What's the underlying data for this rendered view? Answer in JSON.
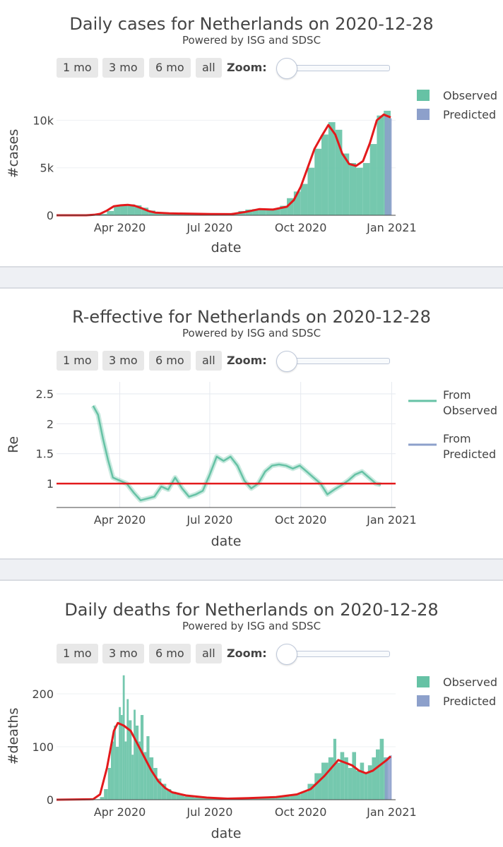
{
  "range_buttons": [
    "1 mo",
    "3 mo",
    "6 mo",
    "all"
  ],
  "zoom_label": "Zoom:",
  "subtitle": "Powered by ISG and SDSC",
  "colors": {
    "observed": "#66c2a5",
    "predicted": "#8da0cb",
    "trend": "#e31a1c"
  },
  "chart_data": [
    {
      "type": "bar",
      "title": "Daily cases for Netherlands on 2020-12-28",
      "xlabel": "date",
      "ylabel": "#cases",
      "x_ticks": [
        "Apr 2020",
        "Jul 2020",
        "Oct 2020",
        "Jan 2021"
      ],
      "y_ticks": [
        "0",
        "5k",
        "10k"
      ],
      "ylim": [
        0,
        13000
      ],
      "x_range": [
        "2020-01-28",
        "2021-01-05"
      ],
      "legend": [
        "Observed",
        "Predicted"
      ],
      "legend_position": "top-right",
      "series": [
        {
          "name": "Observed",
          "type": "bar",
          "points": [
            [
              "2020-02-27",
              0
            ],
            [
              "2020-03-05",
              40
            ],
            [
              "2020-03-12",
              140
            ],
            [
              "2020-03-19",
              450
            ],
            [
              "2020-03-26",
              950
            ],
            [
              "2020-04-02",
              1100
            ],
            [
              "2020-04-09",
              1150
            ],
            [
              "2020-04-16",
              1050
            ],
            [
              "2020-04-23",
              800
            ],
            [
              "2020-04-30",
              500
            ],
            [
              "2020-05-07",
              300
            ],
            [
              "2020-05-14",
              220
            ],
            [
              "2020-05-21",
              180
            ],
            [
              "2020-05-28",
              160
            ],
            [
              "2020-06-04",
              140
            ],
            [
              "2020-06-11",
              130
            ],
            [
              "2020-06-18",
              120
            ],
            [
              "2020-06-25",
              110
            ],
            [
              "2020-07-02",
              90
            ],
            [
              "2020-07-09",
              100
            ],
            [
              "2020-07-16",
              150
            ],
            [
              "2020-07-23",
              250
            ],
            [
              "2020-07-30",
              450
            ],
            [
              "2020-08-06",
              600
            ],
            [
              "2020-08-13",
              650
            ],
            [
              "2020-08-20",
              580
            ],
            [
              "2020-08-27",
              550
            ],
            [
              "2020-09-03",
              650
            ],
            [
              "2020-09-10",
              1000
            ],
            [
              "2020-09-17",
              1800
            ],
            [
              "2020-09-24",
              2500
            ],
            [
              "2020-10-01",
              3300
            ],
            [
              "2020-10-08",
              5000
            ],
            [
              "2020-10-15",
              7000
            ],
            [
              "2020-10-22",
              8500
            ],
            [
              "2020-10-29",
              9800
            ],
            [
              "2020-11-05",
              9000
            ],
            [
              "2020-11-12",
              6500
            ],
            [
              "2020-11-19",
              5500
            ],
            [
              "2020-11-26",
              5000
            ],
            [
              "2020-12-03",
              5500
            ],
            [
              "2020-12-10",
              7500
            ],
            [
              "2020-12-17",
              10500
            ],
            [
              "2020-12-24",
              11000
            ]
          ]
        },
        {
          "name": "Predicted",
          "type": "bar",
          "points": [
            [
              "2020-12-25",
              10600
            ],
            [
              "2020-12-26",
              10500
            ],
            [
              "2020-12-27",
              10400
            ],
            [
              "2020-12-28",
              10300
            ],
            [
              "2020-12-29",
              10200
            ],
            [
              "2020-12-30",
              10200
            ],
            [
              "2020-12-31",
              10200
            ]
          ]
        },
        {
          "name": "",
          "type": "line",
          "points": [
            [
              "2020-01-28",
              0
            ],
            [
              "2020-02-27",
              0
            ],
            [
              "2020-03-06",
              50
            ],
            [
              "2020-03-12",
              150
            ],
            [
              "2020-03-19",
              500
            ],
            [
              "2020-03-26",
              950
            ],
            [
              "2020-04-02",
              1050
            ],
            [
              "2020-04-09",
              1100
            ],
            [
              "2020-04-16",
              1000
            ],
            [
              "2020-04-23",
              750
            ],
            [
              "2020-04-30",
              450
            ],
            [
              "2020-05-07",
              280
            ],
            [
              "2020-05-21",
              200
            ],
            [
              "2020-06-11",
              160
            ],
            [
              "2020-07-02",
              130
            ],
            [
              "2020-07-23",
              120
            ],
            [
              "2020-08-06",
              350
            ],
            [
              "2020-08-20",
              650
            ],
            [
              "2020-09-03",
              600
            ],
            [
              "2020-09-17",
              900
            ],
            [
              "2020-09-24",
              1600
            ],
            [
              "2020-10-01",
              3000
            ],
            [
              "2020-10-08",
              5000
            ],
            [
              "2020-10-15",
              7000
            ],
            [
              "2020-10-22",
              8300
            ],
            [
              "2020-10-29",
              9500
            ],
            [
              "2020-11-05",
              8500
            ],
            [
              "2020-11-12",
              6500
            ],
            [
              "2020-11-19",
              5400
            ],
            [
              "2020-11-26",
              5200
            ],
            [
              "2020-12-03",
              5700
            ],
            [
              "2020-12-10",
              7600
            ],
            [
              "2020-12-17",
              10000
            ],
            [
              "2020-12-24",
              10600
            ],
            [
              "2020-12-31",
              10300
            ]
          ]
        }
      ]
    },
    {
      "type": "line",
      "title": "R-effective for Netherlands on 2020-12-28",
      "xlabel": "date",
      "ylabel": "Re",
      "x_ticks": [
        "Apr 2020",
        "Jul 2020",
        "Oct 2020",
        "Jan 2021"
      ],
      "y_ticks": [
        "1",
        "1.5",
        "2",
        "2.5"
      ],
      "ylim": [
        0.6,
        2.7
      ],
      "x_range": [
        "2020-01-28",
        "2021-01-05"
      ],
      "legend": [
        "From Observed",
        "From Predicted"
      ],
      "legend_position": "top-right",
      "series": [
        {
          "name": "From Observed",
          "type": "line",
          "points": [
            [
              "2020-03-05",
              2.3
            ],
            [
              "2020-03-10",
              2.15
            ],
            [
              "2020-03-15",
              1.75
            ],
            [
              "2020-03-20",
              1.4
            ],
            [
              "2020-03-25",
              1.1
            ],
            [
              "2020-04-01",
              1.05
            ],
            [
              "2020-04-08",
              1.0
            ],
            [
              "2020-04-15",
              0.85
            ],
            [
              "2020-04-22",
              0.72
            ],
            [
              "2020-04-29",
              0.75
            ],
            [
              "2020-05-06",
              0.78
            ],
            [
              "2020-05-13",
              0.95
            ],
            [
              "2020-05-20",
              0.9
            ],
            [
              "2020-05-27",
              1.1
            ],
            [
              "2020-06-03",
              0.92
            ],
            [
              "2020-06-10",
              0.78
            ],
            [
              "2020-06-17",
              0.82
            ],
            [
              "2020-06-24",
              0.88
            ],
            [
              "2020-07-01",
              1.15
            ],
            [
              "2020-07-08",
              1.45
            ],
            [
              "2020-07-15",
              1.38
            ],
            [
              "2020-07-22",
              1.45
            ],
            [
              "2020-07-29",
              1.3
            ],
            [
              "2020-08-05",
              1.05
            ],
            [
              "2020-08-12",
              0.92
            ],
            [
              "2020-08-19",
              1.0
            ],
            [
              "2020-08-26",
              1.2
            ],
            [
              "2020-09-02",
              1.3
            ],
            [
              "2020-09-09",
              1.32
            ],
            [
              "2020-09-16",
              1.3
            ],
            [
              "2020-09-23",
              1.25
            ],
            [
              "2020-09-30",
              1.3
            ],
            [
              "2020-10-07",
              1.2
            ],
            [
              "2020-10-14",
              1.1
            ],
            [
              "2020-10-21",
              1.0
            ],
            [
              "2020-10-28",
              0.82
            ],
            [
              "2020-11-04",
              0.9
            ],
            [
              "2020-11-11",
              0.97
            ],
            [
              "2020-11-18",
              1.05
            ],
            [
              "2020-11-25",
              1.15
            ],
            [
              "2020-12-02",
              1.2
            ],
            [
              "2020-12-09",
              1.1
            ],
            [
              "2020-12-16",
              1.0
            ],
            [
              "2020-12-21",
              0.98
            ]
          ]
        },
        {
          "name": "From Predicted",
          "type": "line",
          "points": []
        }
      ]
    },
    {
      "type": "bar",
      "title": "Daily deaths for Netherlands on 2020-12-28",
      "xlabel": "date",
      "ylabel": "#deaths",
      "x_ticks": [
        "Apr 2020",
        "Jul 2020",
        "Oct 2020",
        "Jan 2021"
      ],
      "y_ticks": [
        "0",
        "100",
        "200"
      ],
      "ylim": [
        0,
        240
      ],
      "x_range": [
        "2020-01-28",
        "2021-01-05"
      ],
      "legend": [
        "Observed",
        "Predicted"
      ],
      "legend_position": "top-right",
      "series": [
        {
          "name": "Observed",
          "type": "bar",
          "points": [
            [
              "2020-03-06",
              1
            ],
            [
              "2020-03-12",
              5
            ],
            [
              "2020-03-16",
              20
            ],
            [
              "2020-03-20",
              60
            ],
            [
              "2020-03-23",
              110
            ],
            [
              "2020-03-26",
              140
            ],
            [
              "2020-03-28",
              100
            ],
            [
              "2020-03-31",
              175
            ],
            [
              "2020-04-02",
              160
            ],
            [
              "2020-04-04",
              235
            ],
            [
              "2020-04-06",
              110
            ],
            [
              "2020-04-08",
              190
            ],
            [
              "2020-04-10",
              150
            ],
            [
              "2020-04-13",
              85
            ],
            [
              "2020-04-15",
              170
            ],
            [
              "2020-04-17",
              140
            ],
            [
              "2020-04-20",
              110
            ],
            [
              "2020-04-22",
              160
            ],
            [
              "2020-04-25",
              90
            ],
            [
              "2020-04-28",
              120
            ],
            [
              "2020-05-01",
              80
            ],
            [
              "2020-05-05",
              60
            ],
            [
              "2020-05-09",
              40
            ],
            [
              "2020-05-13",
              30
            ],
            [
              "2020-05-18",
              20
            ],
            [
              "2020-05-23",
              15
            ],
            [
              "2020-05-28",
              10
            ],
            [
              "2020-06-05",
              6
            ],
            [
              "2020-06-15",
              4
            ],
            [
              "2020-06-25",
              3
            ],
            [
              "2020-07-05",
              2
            ],
            [
              "2020-07-20",
              2
            ],
            [
              "2020-08-05",
              3
            ],
            [
              "2020-08-20",
              5
            ],
            [
              "2020-09-05",
              6
            ],
            [
              "2020-09-20",
              10
            ],
            [
              "2020-10-01",
              15
            ],
            [
              "2020-10-08",
              30
            ],
            [
              "2020-10-15",
              50
            ],
            [
              "2020-10-22",
              70
            ],
            [
              "2020-10-29",
              80
            ],
            [
              "2020-11-03",
              115
            ],
            [
              "2020-11-06",
              70
            ],
            [
              "2020-11-10",
              90
            ],
            [
              "2020-11-14",
              80
            ],
            [
              "2020-11-18",
              60
            ],
            [
              "2020-11-22",
              90
            ],
            [
              "2020-11-26",
              55
            ],
            [
              "2020-11-30",
              70
            ],
            [
              "2020-12-04",
              50
            ],
            [
              "2020-12-08",
              65
            ],
            [
              "2020-12-12",
              80
            ],
            [
              "2020-12-16",
              95
            ],
            [
              "2020-12-20",
              115
            ],
            [
              "2020-12-24",
              80
            ]
          ]
        },
        {
          "name": "Predicted",
          "type": "bar",
          "points": [
            [
              "2020-12-25",
              78
            ],
            [
              "2020-12-26",
              79
            ],
            [
              "2020-12-27",
              80
            ],
            [
              "2020-12-28",
              81
            ],
            [
              "2020-12-29",
              82
            ],
            [
              "2020-12-30",
              83
            ],
            [
              "2020-12-31",
              84
            ]
          ]
        },
        {
          "name": "",
          "type": "line",
          "points": [
            [
              "2020-01-28",
              0
            ],
            [
              "2020-03-05",
              1
            ],
            [
              "2020-03-12",
              10
            ],
            [
              "2020-03-19",
              60
            ],
            [
              "2020-03-26",
              130
            ],
            [
              "2020-03-30",
              145
            ],
            [
              "2020-04-05",
              140
            ],
            [
              "2020-04-12",
              130
            ],
            [
              "2020-04-19",
              105
            ],
            [
              "2020-04-26",
              80
            ],
            [
              "2020-05-03",
              55
            ],
            [
              "2020-05-10",
              35
            ],
            [
              "2020-05-17",
              22
            ],
            [
              "2020-05-24",
              14
            ],
            [
              "2020-06-07",
              8
            ],
            [
              "2020-06-28",
              4
            ],
            [
              "2020-07-19",
              2
            ],
            [
              "2020-08-09",
              3
            ],
            [
              "2020-09-06",
              5
            ],
            [
              "2020-09-27",
              10
            ],
            [
              "2020-10-11",
              20
            ],
            [
              "2020-10-25",
              45
            ],
            [
              "2020-11-08",
              75
            ],
            [
              "2020-11-15",
              70
            ],
            [
              "2020-11-22",
              65
            ],
            [
              "2020-11-29",
              55
            ],
            [
              "2020-12-06",
              50
            ],
            [
              "2020-12-13",
              55
            ],
            [
              "2020-12-20",
              65
            ],
            [
              "2020-12-27",
              75
            ],
            [
              "2020-12-31",
              82
            ]
          ]
        }
      ]
    }
  ]
}
